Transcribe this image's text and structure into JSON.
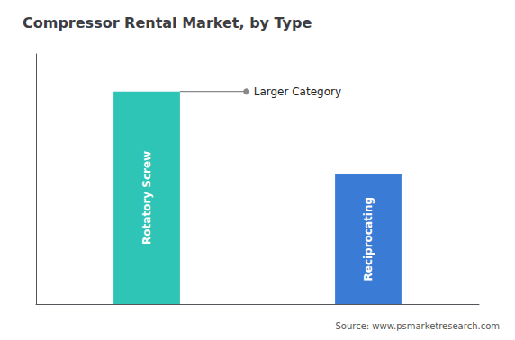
{
  "chart_data": {
    "type": "bar",
    "title": "Compressor Rental Market, by Type",
    "categories": [
      "Rotatory Screw",
      "Reciprocating"
    ],
    "values": [
      85,
      52
    ],
    "colors": [
      "#2ec4b6",
      "#3a7bd5"
    ],
    "ylim": [
      0,
      100
    ],
    "tick_labels": false,
    "grid": false,
    "annotation": {
      "text": "Larger Category",
      "category": "Rotatory Screw"
    },
    "source": "Source: www.psmarketresearch.com"
  }
}
